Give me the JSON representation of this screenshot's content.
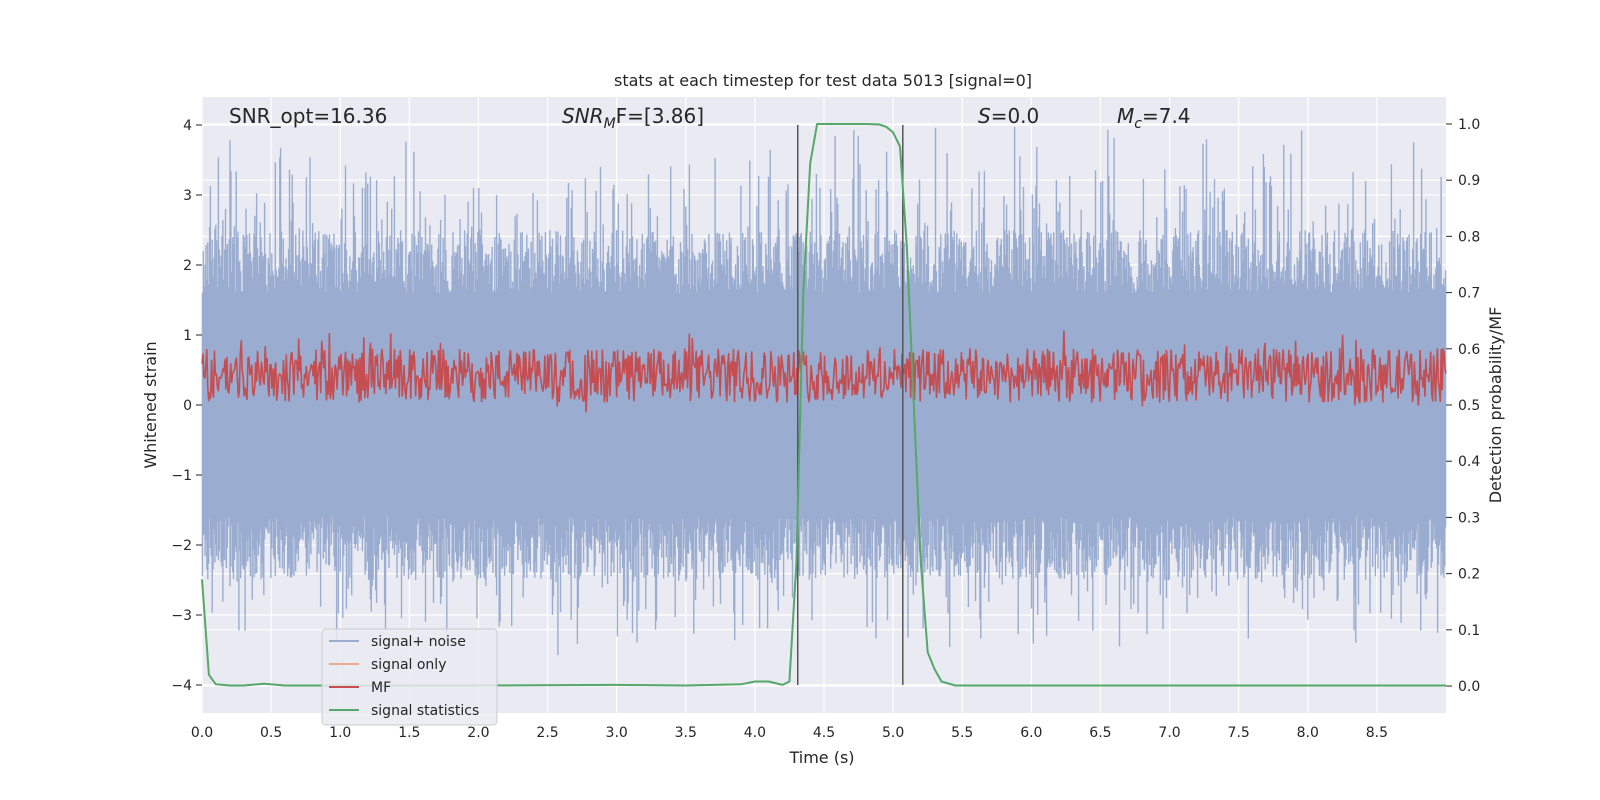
{
  "chart_data": {
    "type": "line",
    "title": "stats at each timestep for test data 5013 [signal=0]",
    "xlabel": "Time (s)",
    "ylabel": "Whitened strain",
    "y2label": "Detection probability/MF",
    "xlim": [
      0.0,
      9.0
    ],
    "ylim": [
      -4.4,
      4.4
    ],
    "y2lim": [
      -0.048,
      1.048
    ],
    "x_ticks": [
      "0.0",
      "0.5",
      "1.0",
      "1.5",
      "2.0",
      "2.5",
      "3.0",
      "3.5",
      "4.0",
      "4.5",
      "5.0",
      "5.5",
      "6.0",
      "6.5",
      "7.0",
      "7.5",
      "8.0",
      "8.5"
    ],
    "y_ticks": [
      "4",
      "3",
      "2",
      "1",
      "0",
      "−1",
      "−2",
      "−3",
      "−4"
    ],
    "y2_ticks": [
      "1.0",
      "0.9",
      "0.8",
      "0.7",
      "0.6",
      "0.5",
      "0.4",
      "0.3",
      "0.2",
      "0.1",
      "0.0"
    ],
    "grid": true,
    "legend_placement": "lower-left",
    "annotations": {
      "snr_opt": "SNR_opt=16.36",
      "snr_mf_base": "SNR",
      "snr_mf_sub": "M",
      "snr_mf_rest": "F=[3.86]",
      "s_sym": "S",
      "s_val": "=0.0",
      "mc_sym": "M",
      "mc_sub": "c",
      "mc_val": "=7.4"
    },
    "vertical_lines_x": [
      4.31,
      5.07
    ],
    "series": [
      {
        "name": "signal+ noise",
        "color": "#9aadd0",
        "axis": "left",
        "description_amplitude": {
          "positive_peak": 4.0,
          "negative_peak": -3.6,
          "dense_band": [
            -1.6,
            1.6
          ]
        }
      },
      {
        "name": "signal only",
        "color": "#f2a98a",
        "axis": "left"
      },
      {
        "name": "MF",
        "color": "#c44e52",
        "axis": "right",
        "band": [
          0.505,
          0.6
        ]
      },
      {
        "name": "signal statistics",
        "color": "#55a868",
        "axis": "right",
        "x": [
          0.0,
          0.05,
          0.1,
          0.2,
          0.3,
          0.45,
          0.6,
          1.0,
          2.0,
          3.0,
          3.5,
          3.9,
          4.0,
          4.1,
          4.2,
          4.25,
          4.3,
          4.35,
          4.4,
          4.45,
          4.6,
          4.8,
          4.9,
          4.95,
          5.0,
          5.05,
          5.1,
          5.15,
          5.2,
          5.25,
          5.3,
          5.35,
          5.45,
          6.0,
          7.0,
          8.0,
          9.0
        ],
        "values": [
          0.19,
          0.02,
          0.003,
          0.001,
          0.001,
          0.004,
          0.001,
          0.001,
          0.001,
          0.002,
          0.001,
          0.003,
          0.008,
          0.008,
          0.002,
          0.008,
          0.22,
          0.7,
          0.93,
          1.0,
          1.0,
          1.0,
          0.999,
          0.995,
          0.985,
          0.96,
          0.78,
          0.5,
          0.22,
          0.06,
          0.03,
          0.008,
          0.001,
          0.001,
          0.001,
          0.001,
          0.001
        ]
      }
    ]
  },
  "colors": {
    "plot_bg": "#eaeaf2",
    "grid": "#ffffff",
    "noise": "#9aadd0",
    "mf": "#c44e52",
    "stat": "#55a868",
    "vline": "#555555"
  }
}
